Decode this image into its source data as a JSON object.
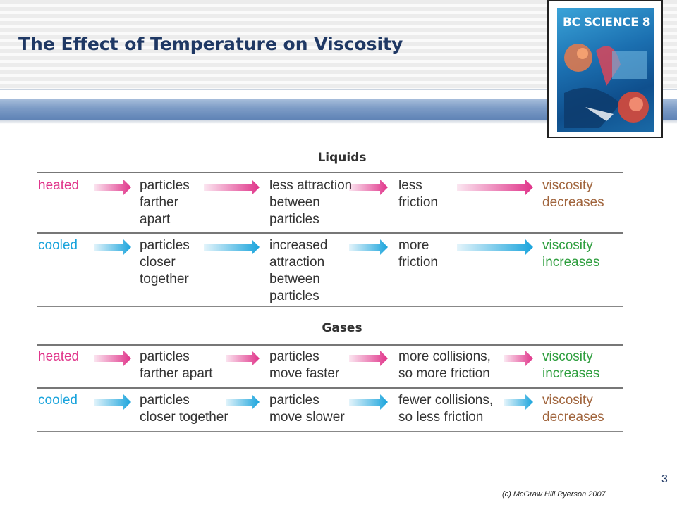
{
  "slide": {
    "title": "The Effect of Temperature on Viscosity",
    "page_number": "3",
    "copyright": "(c) McGraw Hill Ryerson 2007"
  },
  "cover": {
    "title": "BC SCIENCE 8"
  },
  "sections": [
    {
      "title": "Liquids",
      "rows": [
        {
          "condition": "heated",
          "steps": [
            "particles\nfarther\napart",
            "less attraction\nbetween\nparticles",
            "less\nfriction"
          ],
          "result": "viscosity\ndecreases"
        },
        {
          "condition": "cooled",
          "steps": [
            "particles\ncloser\ntogether",
            "increased\nattraction\nbetween\nparticles",
            "more\nfriction"
          ],
          "result": "viscosity\nincreases"
        }
      ]
    },
    {
      "title": "Gases",
      "rows": [
        {
          "condition": "heated",
          "steps": [
            "particles\nfarther apart",
            "particles\nmove faster",
            "more collisions,\nso more friction"
          ],
          "result": "viscosity\nincreases"
        },
        {
          "condition": "cooled",
          "steps": [
            "particles\ncloser together",
            "particles\nmove slower",
            "fewer collisions,\nso less friction"
          ],
          "result": "viscosity\ndecreases"
        }
      ]
    }
  ],
  "colors": {
    "heated": "#e0348a",
    "cooled": "#1aa4dc",
    "increase": "#2e9e3e",
    "decrease": "#a0643c",
    "title": "#1f3864"
  }
}
